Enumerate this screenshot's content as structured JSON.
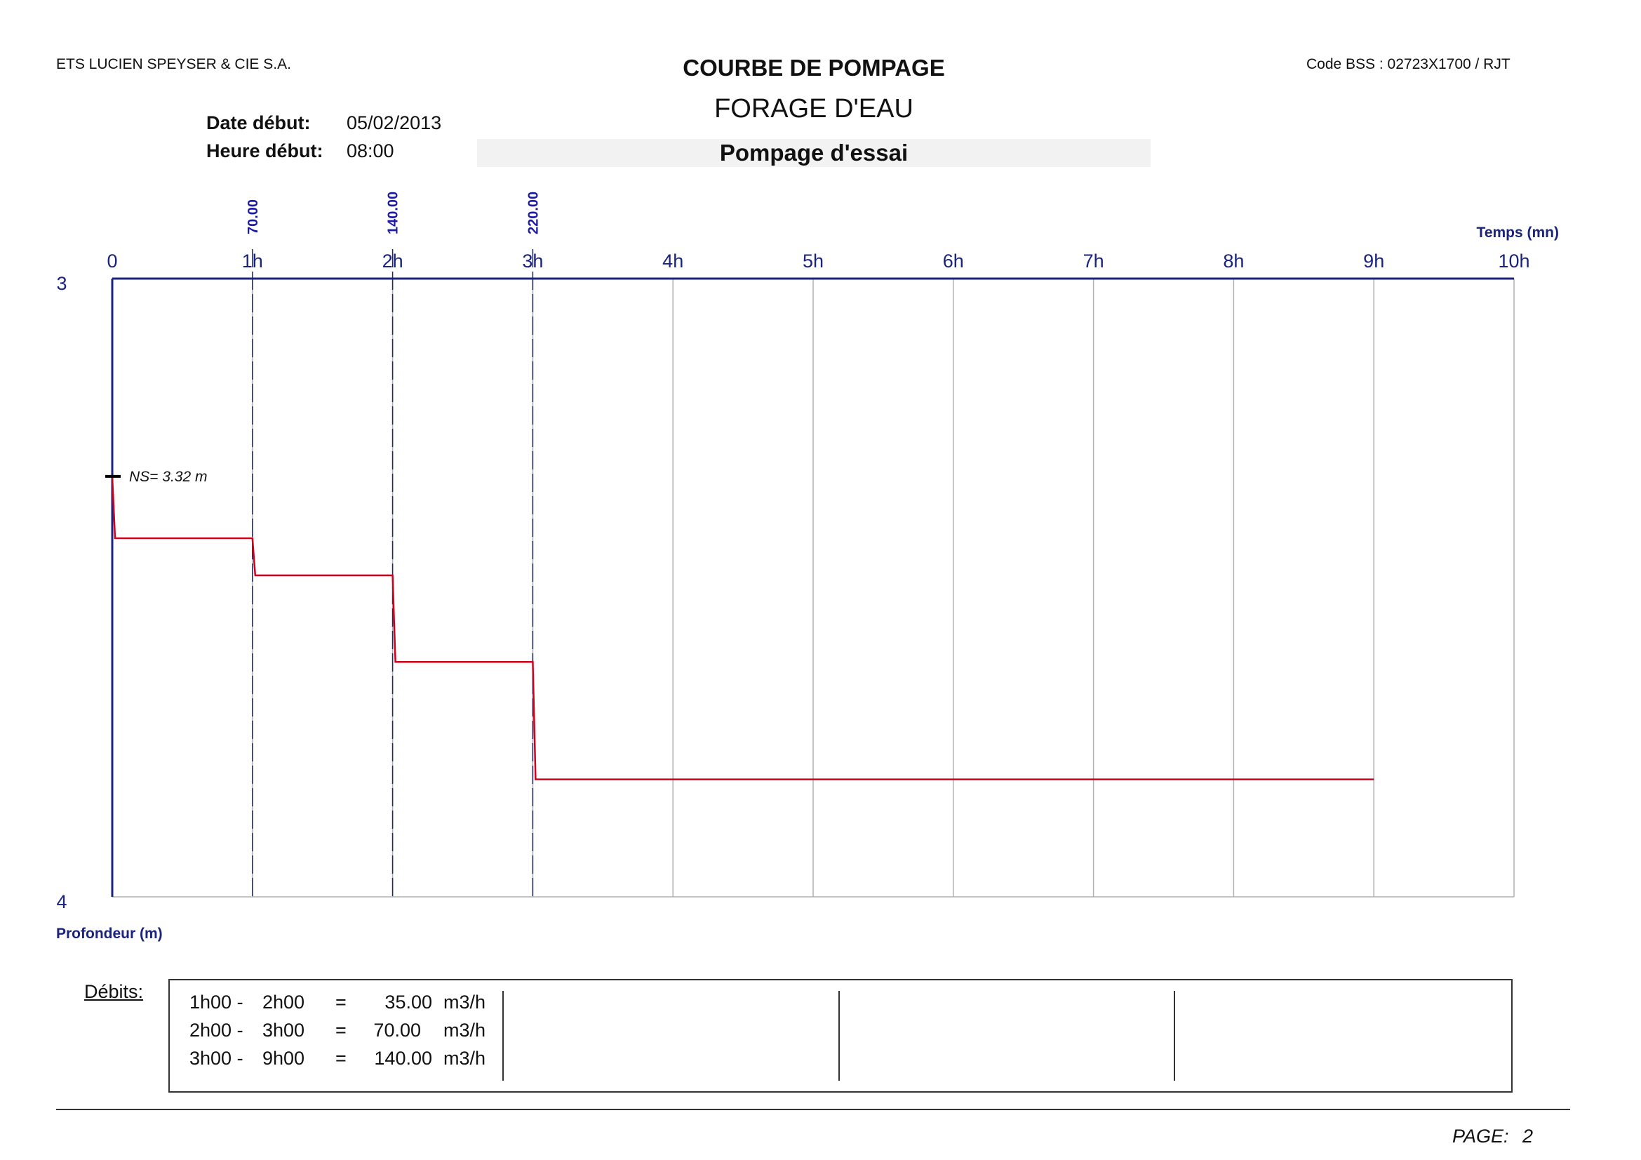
{
  "header": {
    "company": "ETS LUCIEN SPEYSER & CIE S.A.",
    "code": "Code BSS : 02723X1700 / RJT",
    "title": "COURBE DE POMPAGE",
    "subtitle": "FORAGE D'EAU",
    "test_title": "Pompage d'essai"
  },
  "meta": {
    "date_label": "Date début:",
    "date_value": "05/02/2013",
    "time_label": "Heure début:",
    "time_value": "08:00"
  },
  "chart_data": {
    "type": "line",
    "xlabel": "Temps (mn)",
    "ylabel": "Profondeur (m)",
    "x_unit": "hours",
    "xlim": [
      0,
      10
    ],
    "ylim": [
      3,
      4
    ],
    "y_inverted": true,
    "grid": true,
    "x_ticks": [
      0,
      1,
      2,
      3,
      4,
      5,
      6,
      7,
      8,
      9,
      10
    ],
    "x_tick_labels": [
      "0",
      "1h",
      "2h",
      "3h",
      "4h",
      "5h",
      "6h",
      "7h",
      "8h",
      "9h",
      "10h"
    ],
    "y_ticks": [
      3,
      4
    ],
    "y_tick_labels": [
      "3",
      "4"
    ],
    "step_markers": [
      {
        "x": 1,
        "label": "70.00"
      },
      {
        "x": 2,
        "label": "140.00"
      },
      {
        "x": 3,
        "label": "220.00"
      }
    ],
    "ns": {
      "value": 3.32,
      "label": "NS= 3.32 m"
    },
    "series": [
      {
        "color": "#d0021b",
        "x": [
          0,
          0.02,
          1.0,
          1.02,
          2.0,
          2.02,
          3.0,
          3.02,
          9.0
        ],
        "y": [
          3.32,
          3.42,
          3.42,
          3.48,
          3.48,
          3.62,
          3.62,
          3.81,
          3.81
        ]
      }
    ],
    "colors": {
      "axis": "#1a237e",
      "grid": "#b0b0b0",
      "curve": "#d0021b",
      "text_axis": "#1a237e"
    }
  },
  "debits": {
    "label": "Débits:",
    "rows": [
      {
        "from": "1h00 -",
        "to": "2h00",
        "eq": "=",
        "value": "35.00",
        "unit": "m3/h"
      },
      {
        "from": "2h00 -",
        "to": "3h00",
        "eq": "=",
        "value": "70.00",
        "unit": "m3/h"
      },
      {
        "from": "3h00 -",
        "to": "9h00",
        "eq": "=",
        "value": "140.00",
        "unit": "m3/h"
      }
    ]
  },
  "footer": {
    "page_label": "PAGE:",
    "page_number": "2"
  }
}
